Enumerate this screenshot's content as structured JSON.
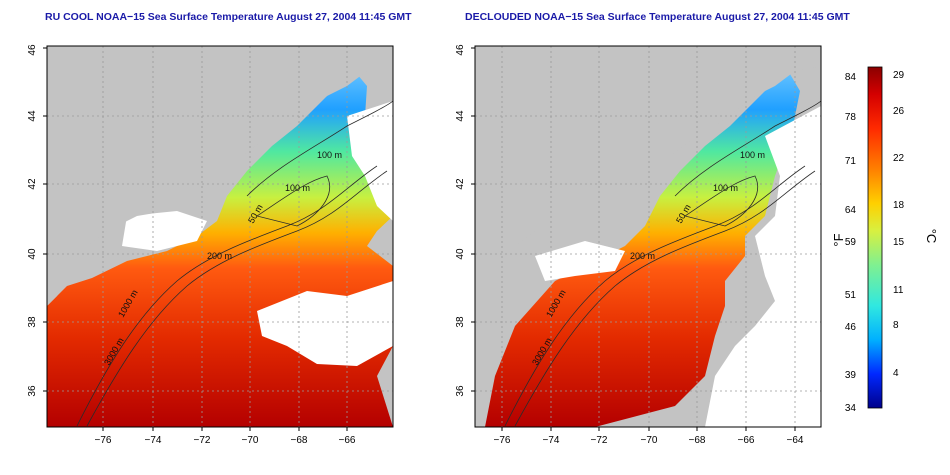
{
  "colors": {
    "land": "#c3c3c3",
    "frame": "#000000",
    "title": "#1a1aa8",
    "grid": "#9a9a9a",
    "contour": "#2b2b2b",
    "legend_scale": [
      "#00008b",
      "#0028ff",
      "#00b0ff",
      "#30e8e0",
      "#80f090",
      "#d8f040",
      "#ffd000",
      "#ff8000",
      "#ff2a00",
      "#d40000",
      "#8b0000"
    ]
  },
  "panels": [
    {
      "title": "RU COOL NOAA−15 Sea Surface Temperature August 27, 2004 11:45 GMT",
      "contour_labels": [
        "100 m",
        "100 m",
        "50 m",
        "200 m",
        "1000 m",
        "3000 m"
      ]
    },
    {
      "title": "DECLOUDED NOAA−15 Sea Surface Temperature August 27, 2004 11:45 GMT",
      "contour_labels": [
        "100 m",
        "100 m",
        "50 m",
        "200 m",
        "1000 m",
        "3000 m"
      ]
    }
  ],
  "axes": {
    "x_ticks": [
      "−76",
      "−74",
      "−72",
      "−70",
      "−68",
      "−66",
      "−64"
    ],
    "y_ticks": [
      "36",
      "38",
      "40",
      "42",
      "44",
      "46"
    ]
  },
  "legend": {
    "left_label": "°F",
    "right_label": "°C",
    "f_ticks": [
      "84",
      "78",
      "71",
      "64",
      "59",
      "51",
      "46",
      "39",
      "34"
    ],
    "c_ticks": [
      "29",
      "26",
      "22",
      "18",
      "15",
      "11",
      "8",
      "4"
    ]
  }
}
